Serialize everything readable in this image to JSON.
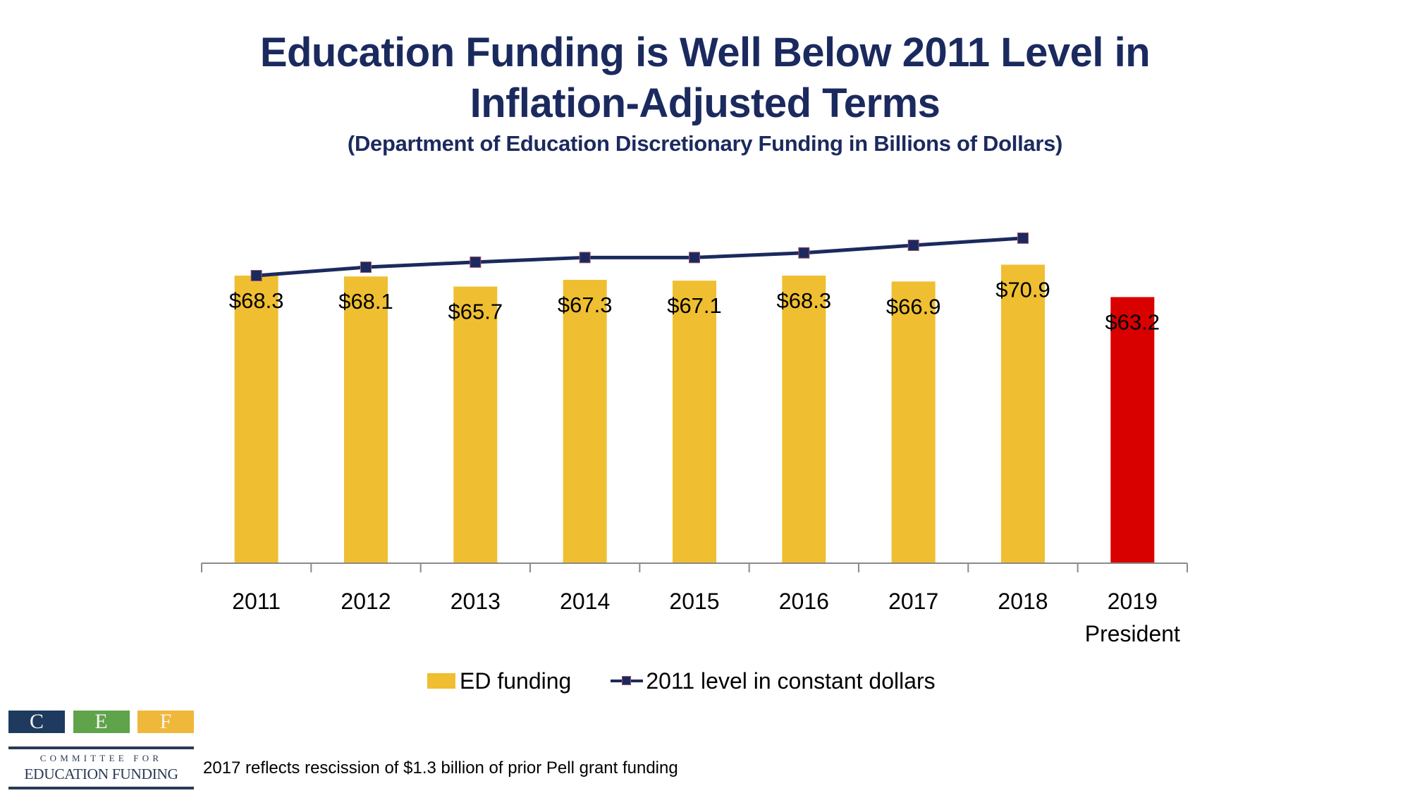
{
  "header": {
    "title_line1": "Education Funding is Well Below 2011 Level in",
    "title_line2": "Inflation-Adjusted Terms",
    "subtitle": "(Department of Education Discretionary Funding in Billions of Dollars)"
  },
  "chart_data": {
    "type": "bar",
    "title": "Education Funding is Well Below 2011 Level in Inflation-Adjusted Terms",
    "subtitle": "(Department of Education Discretionary Funding in Billions of Dollars)",
    "xlabel": "",
    "ylabel": "",
    "ylim": [
      0,
      80
    ],
    "grid": false,
    "legend_position": "bottom",
    "categories": [
      "2011",
      "2012",
      "2013",
      "2014",
      "2015",
      "2016",
      "2017",
      "2018",
      "2019 President"
    ],
    "category_lines": [
      [
        "2011"
      ],
      [
        "2012"
      ],
      [
        "2013"
      ],
      [
        "2014"
      ],
      [
        "2015"
      ],
      [
        "2016"
      ],
      [
        "2017"
      ],
      [
        "2018"
      ],
      [
        "2019",
        "President"
      ]
    ],
    "series": [
      {
        "name": "ED funding",
        "type": "bar",
        "values": [
          68.3,
          68.1,
          65.7,
          67.3,
          67.1,
          68.3,
          66.9,
          70.9,
          63.2
        ],
        "labels": [
          "$68.3",
          "$68.1",
          "$65.7",
          "$67.3",
          "$67.1",
          "$68.3",
          "$66.9",
          "$70.9",
          "$63.2"
        ],
        "color": "#efbf31",
        "highlight_color": "#d90000",
        "highlight_index": 8
      },
      {
        "name": "2011 level in constant dollars",
        "type": "line",
        "values": [
          68.3,
          70.3,
          71.5,
          72.6,
          72.6,
          73.7,
          75.5,
          77.2,
          null
        ],
        "color": "#1b2a5e",
        "marker": "square"
      }
    ]
  },
  "legend": {
    "items": [
      {
        "label": "ED funding",
        "color": "#efbf31"
      },
      {
        "label": "2011 level in constant dollars",
        "color": "#1b2a5e"
      }
    ]
  },
  "logo": {
    "letters": [
      "C",
      "E",
      "F"
    ],
    "colors": [
      "#1f3a5f",
      "#5fa34a",
      "#f0b83a"
    ],
    "line1": "COMMITTEE FOR",
    "line2": "EDUCATION FUNDING"
  },
  "footnote": "2017 reflects rescission of $1.3 billion of prior Pell grant funding"
}
